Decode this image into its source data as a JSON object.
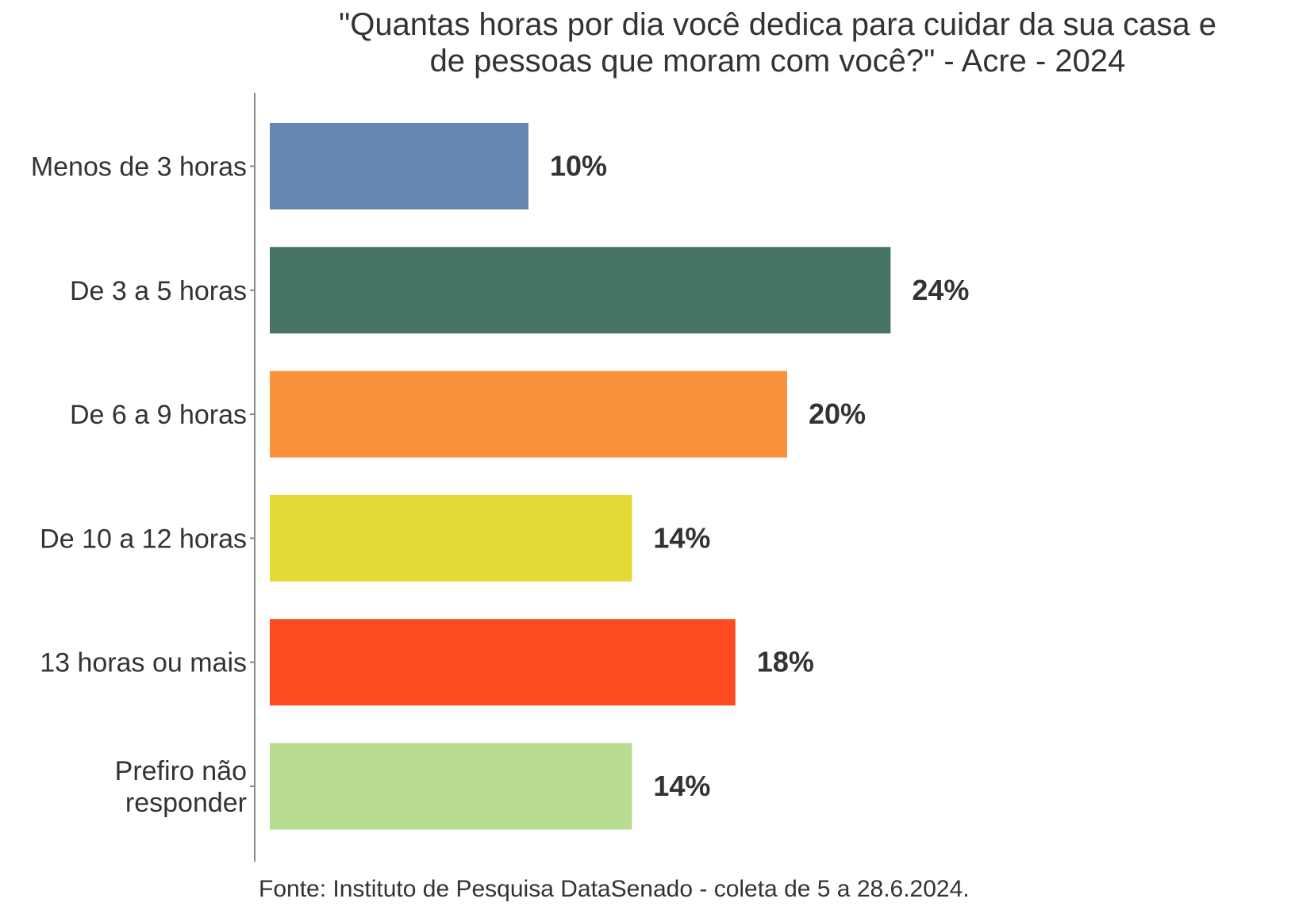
{
  "chart_data": {
    "type": "bar",
    "orientation": "horizontal",
    "title": "\"Quantas horas por dia você dedica para cuidar da sua casa e de pessoas que moram com você?\" - Acre - 2024",
    "title_lines": [
      "\"Quantas horas por dia você dedica para cuidar da sua casa e",
      "de pessoas que moram com você?\" - Acre - 2024"
    ],
    "categories": [
      "Menos de 3 horas",
      "De 3 a 5 horas",
      "De 6 a 9 horas",
      "De 10 a 12 horas",
      "13 horas ou mais",
      "Prefiro não responder"
    ],
    "category_lines": [
      [
        "Menos de 3 horas"
      ],
      [
        "De 3 a 5 horas"
      ],
      [
        "De 6 a 9 horas"
      ],
      [
        "De 10 a 12 horas"
      ],
      [
        "13 horas ou mais"
      ],
      [
        "Prefiro não",
        "responder"
      ]
    ],
    "values": [
      10,
      24,
      20,
      14,
      18,
      14
    ],
    "labels": [
      "10%",
      "24%",
      "20%",
      "14%",
      "18%",
      "14%"
    ],
    "colors": [
      "#6588B0",
      "#467564",
      "#FA923D",
      "#E5D935",
      "#FF4B22",
      "#B8DC91"
    ],
    "xlabel": "",
    "ylabel": "",
    "xlim": [
      0,
      26
    ],
    "grid": false,
    "legend": "none"
  },
  "footer": "Fonte: Instituto de Pesquisa DataSenado - coleta de 5 a 28.6.2024."
}
